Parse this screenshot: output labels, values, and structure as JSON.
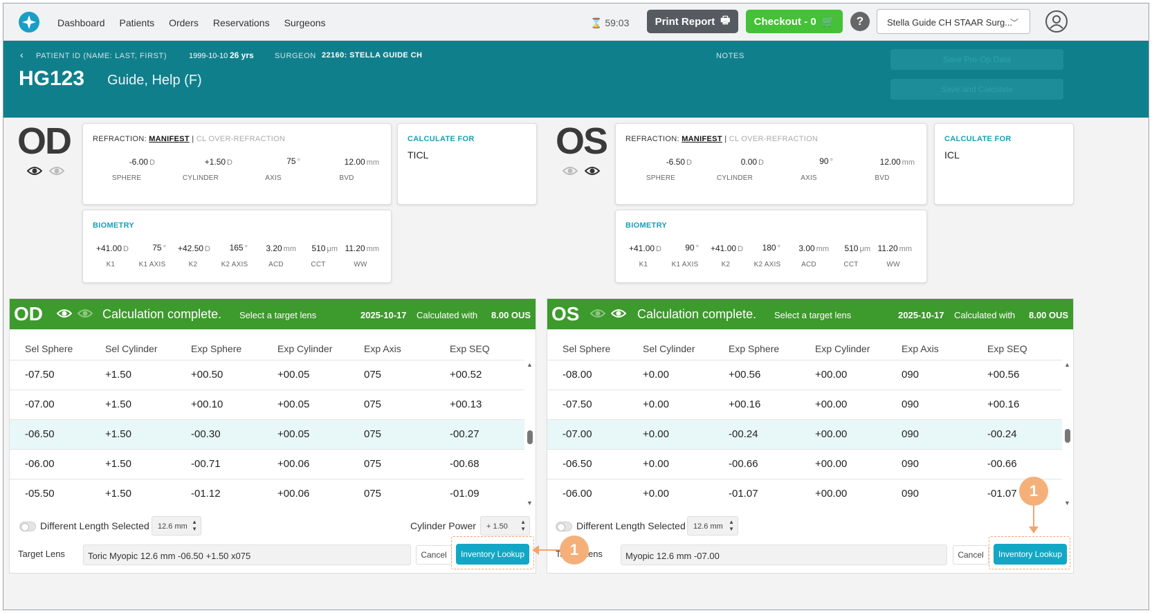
{
  "nav": {
    "links": [
      "Dashboard",
      "Patients",
      "Orders",
      "Reservations",
      "Surgeons"
    ],
    "timer": "59:03",
    "print_label": "Print Report",
    "checkout_label": "Checkout - 0",
    "help": "?",
    "surgeon_select": "Stella Guide CH STAAR Surg..."
  },
  "header": {
    "patient_label": "PATIENT ID (NAME: LAST, FIRST)",
    "dob": "1999-10-10",
    "age": "26 yrs",
    "surgeon_label": "SURGEON",
    "surgeon_value": "22160: STELLA GUIDE CH",
    "notes_label": "NOTES",
    "patient_id": "HG123",
    "patient_name": "Guide,  Help  (F)",
    "save_preop": "Save Pre-Op Data",
    "save_calc": "Save and Calculate"
  },
  "od": {
    "eye": "OD",
    "refraction": {
      "title": "REFRACTION:",
      "manifest": "MANIFEST",
      "sep": "|",
      "cl": "CL OVER-REFRACTION",
      "sphere": "-6.00",
      "sphere_u": "D",
      "cylinder": "+1.50",
      "cylinder_u": "D",
      "axis": "75",
      "axis_u": "°",
      "bvd": "12.00",
      "bvd_u": "mm",
      "labels": [
        "SPHERE",
        "CYLINDER",
        "AXIS",
        "BVD"
      ]
    },
    "calc_for": {
      "title": "CALCULATE FOR",
      "value": "TICL"
    },
    "biometry": {
      "title": "BIOMETRY",
      "values": [
        "+41.00",
        "75",
        "+42.50",
        "165",
        "3.20",
        "510",
        "11.20"
      ],
      "units": [
        "D",
        "°",
        "D",
        "°",
        "mm",
        "μm",
        "mm"
      ],
      "labels": [
        "K1",
        "K1 AXIS",
        "K2",
        "K2 AXIS",
        "ACD",
        "CCT",
        "WW"
      ]
    }
  },
  "os": {
    "eye": "OS",
    "refraction": {
      "title": "REFRACTION:",
      "manifest": "MANIFEST",
      "sep": "|",
      "cl": "CL OVER-REFRACTION",
      "sphere": "-6.50",
      "sphere_u": "D",
      "cylinder": "0.00",
      "cylinder_u": "D",
      "axis": "90",
      "axis_u": "°",
      "bvd": "12.00",
      "bvd_u": "mm",
      "labels": [
        "SPHERE",
        "CYLINDER",
        "AXIS",
        "BVD"
      ]
    },
    "calc_for": {
      "title": "CALCULATE FOR",
      "value": "ICL"
    },
    "biometry": {
      "title": "BIOMETRY",
      "values": [
        "+41.00",
        "90",
        "+41.00",
        "180",
        "3.00",
        "510",
        "11.20"
      ],
      "units": [
        "D",
        "°",
        "D",
        "°",
        "mm",
        "μm",
        "mm"
      ],
      "labels": [
        "K1",
        "K1 AXIS",
        "K2",
        "K2 AXIS",
        "ACD",
        "CCT",
        "WW"
      ]
    }
  },
  "calc": {
    "complete": "Calculation complete.",
    "select": "Select a target lens",
    "date": "2025-10-17",
    "calc_with": "Calculated with",
    "version": "8.00 OUS",
    "columns": [
      "Sel Sphere",
      "Sel Cylinder",
      "Exp Sphere",
      "Exp Cylinder",
      "Exp Axis",
      "Exp SEQ"
    ],
    "different_length": "Different Length Selected",
    "length": "12.6 mm",
    "target_lens_label": "Target Lens",
    "cancel": "Cancel",
    "inventory": "Inventory Lookup",
    "callout": "1"
  },
  "od_calc": {
    "rows": [
      [
        "-07.50",
        "+1.50",
        "+00.50",
        "+00.05",
        "075",
        "+00.52"
      ],
      [
        "-07.00",
        "+1.50",
        "+00.10",
        "+00.05",
        "075",
        "+00.13"
      ],
      [
        "-06.50",
        "+1.50",
        "-00.30",
        "+00.05",
        "075",
        "-00.27"
      ],
      [
        "-06.00",
        "+1.50",
        "-00.71",
        "+00.06",
        "075",
        "-00.68"
      ],
      [
        "-05.50",
        "+1.50",
        "-01.12",
        "+00.06",
        "075",
        "-01.09"
      ]
    ],
    "selected": 2,
    "cyl_power_label": "Cylinder Power",
    "cyl_power": "+ 1.50",
    "target_lens": "Toric Myopic 12.6 mm -06.50 +1.50 x075"
  },
  "os_calc": {
    "rows": [
      [
        "-08.00",
        "+0.00",
        "+00.56",
        "+00.00",
        "090",
        "+00.56"
      ],
      [
        "-07.50",
        "+0.00",
        "+00.16",
        "+00.00",
        "090",
        "+00.16"
      ],
      [
        "-07.00",
        "+0.00",
        "-00.24",
        "+00.00",
        "090",
        "-00.24"
      ],
      [
        "-06.50",
        "+0.00",
        "-00.66",
        "+00.00",
        "090",
        "-00.66"
      ],
      [
        "-06.00",
        "+0.00",
        "-01.07",
        "+00.00",
        "090",
        "-01.07"
      ]
    ],
    "selected": 2,
    "target_lens": "Myopic 12.6 mm -07.00"
  },
  "colors": {
    "teal_band": "#107f8c",
    "green_bar": "#3d9a2c",
    "checkout": "#44c136",
    "inventory": "#12a8c5",
    "callout": "#f5b07a"
  }
}
